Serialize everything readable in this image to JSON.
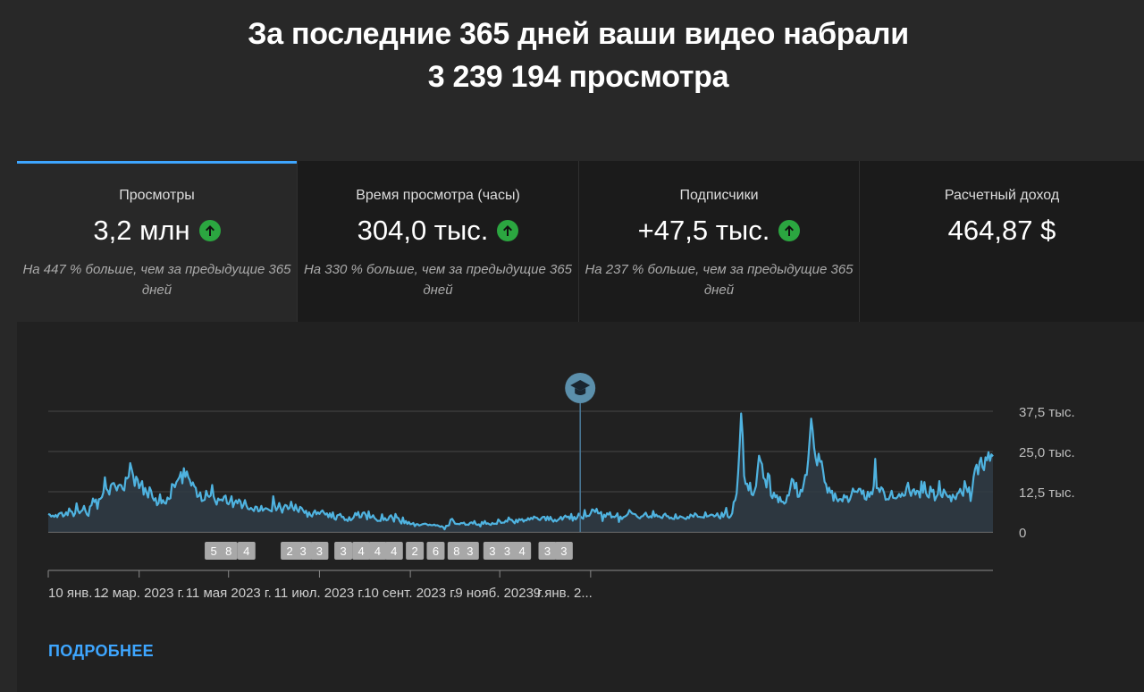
{
  "headline": {
    "line1": "За последние 365 дней ваши видео набрали",
    "line2": "3 239 194 просмотра"
  },
  "tabs": [
    {
      "label": "Просмотры",
      "value": "3,2 млн",
      "trend": "up",
      "desc": "На 447 % больше, чем за предыдущие 365 дней",
      "active": true
    },
    {
      "label": "Время просмотра (часы)",
      "value": "304,0 тыс.",
      "trend": "up",
      "desc": "На 330 % больше, чем за предыдущие 365 дней",
      "active": false
    },
    {
      "label": "Подписчики",
      "value": "+47,5 тыс.",
      "trend": "up",
      "desc": "На 237 % больше, чем за предыдущие 365 дней",
      "active": false
    },
    {
      "label": "Расчетный доход",
      "value": "464,87 $",
      "trend": null,
      "desc": "",
      "active": false
    }
  ],
  "colors": {
    "accent": "#3ea6ff",
    "line": "#4fb3e0",
    "up_arrow": "#2ba640",
    "badge": "#a8a8a8"
  },
  "chart_data": {
    "type": "area",
    "yticks": [
      "37,5 тыс.",
      "25,0 тыс.",
      "12,5 тыс.",
      "0"
    ],
    "ytick_values": [
      37500,
      25000,
      12500,
      0
    ],
    "ylim": [
      0,
      37500
    ],
    "xticks": [
      "10 янв. ...",
      "12 мар. 2023 г.",
      "11 мая 2023 г.",
      "11 июл. 2023 г.",
      "10 сент. 2023 г.",
      "9 нояб. 2023 г.",
      "9 янв. 2..."
    ],
    "marker_icon": "graduation-cap-icon",
    "marker_day": 357,
    "series": [
      {
        "values": [
          5600,
          5400,
          4800,
          5100,
          4700,
          5300,
          4600,
          5600,
          5900,
          6000,
          4800,
          5200,
          6100,
          5200,
          7300,
          6500,
          6200,
          4900,
          5800,
          8900,
          6600,
          5800,
          6400,
          6800,
          8100,
          6500,
          5400,
          5000,
          7900,
          8300,
          10400,
          9300,
          10100,
          7200,
          10200,
          10300,
          10800,
          12300,
          17000,
          13400,
          12800,
          11600,
          14500,
          15100,
          15200,
          14100,
          12900,
          14400,
          14700,
          14500,
          13300,
          12900,
          16900,
          16600,
          17200,
          21400,
          19500,
          17500,
          14300,
          17200,
          16300,
          13600,
          14800,
          15800,
          11600,
          13700,
          12200,
          10700,
          13900,
          12800,
          10700,
          9800,
          10500,
          8300,
          8900,
          11700,
          8900,
          9900,
          9000,
          8800,
          10700,
          10200,
          10500,
          14900,
          14700,
          13900,
          15500,
          16200,
          17000,
          18600,
          15100,
          19800,
          17100,
          18800,
          17000,
          16100,
          14400,
          15400,
          14200,
          13700,
          10900,
          11100,
          12300,
          9600,
          9800,
          10000,
          12800,
          11300,
          10900,
          11300,
          14600,
          11000,
          9600,
          8500,
          10400,
          9900,
          10100,
          9700,
          11000,
          11300,
          8900,
          8600,
          9600,
          11100,
          7700,
          9100,
          9800,
          8900,
          10100,
          9500,
          7400,
          8400,
          9900,
          8200,
          7200,
          7000,
          7500,
          7000,
          6500,
          7900,
          7800,
          6400,
          6600,
          8100,
          6600,
          7100,
          7400,
          7200,
          6900,
          6600,
          6400,
          11100,
          8300,
          6700,
          7500,
          9000,
          7400,
          6000,
          7600,
          8400,
          8200,
          7100,
          7500,
          9400,
          7600,
          6700,
          8500,
          6900,
          6200,
          7800,
          7500,
          6700,
          5900,
          6600,
          4700,
          6100,
          5200,
          4800,
          6000,
          6700,
          5500,
          6100,
          5600,
          6300,
          6700,
          6000,
          5400,
          5800,
          4600,
          5800,
          4500,
          6100,
          4100,
          3800,
          5200,
          5300,
          5600,
          4600,
          4700,
          3700,
          3900,
          3400,
          4600,
          3600,
          4000,
          4600,
          5900,
          5200,
          6200,
          4500,
          4600,
          5900,
          6100,
          5400,
          3900,
          6400,
          4400,
          4600,
          5200,
          4300,
          3900,
          3400,
          3500,
          3400,
          5500,
          3700,
          4300,
          3600,
          3800,
          4800,
          5200,
          4400,
          3200,
          5600,
          4500,
          4300,
          3300,
          2600,
          4500,
          2700,
          3400,
          2500,
          3100,
          2400,
          2500,
          2800,
          1800,
          2400,
          2400,
          2000,
          2200,
          2400,
          2500,
          2600,
          2400,
          2100,
          2300,
          2100,
          2100,
          2300,
          2000,
          2100,
          1900,
          1600,
          1800,
          1500,
          800,
          1900,
          1900,
          2100,
          3800,
          4100,
          3400,
          2600,
          2500,
          2500,
          2400,
          2800,
          2700,
          2900,
          2200,
          2300,
          2200,
          2800,
          3000,
          2600,
          3400,
          2400,
          2200,
          2400,
          1700,
          3100,
          2500,
          3400,
          2500,
          2700,
          2400,
          2200,
          2800,
          2500,
          2600,
          2500,
          3900,
          3400,
          2800,
          2900,
          2900,
          3500,
          3200,
          4500,
          3800,
          3800,
          3200,
          2700,
          3800,
          3000,
          4000,
          3700,
          4000,
          3200,
          3700,
          3600,
          4300,
          3800,
          4400,
          4000,
          4800,
          4500,
          4400,
          3900,
          3700,
          4300,
          4700,
          4700,
          3600,
          4800,
          3700,
          4700,
          3800,
          3200,
          3800,
          3300,
          3700,
          4100,
          4700,
          3800,
          4600,
          5100,
          4600,
          4800,
          4000,
          5600,
          3500,
          4700,
          3900,
          4500,
          5700,
          5000,
          4400,
          4100,
          6800,
          4800,
          5000,
          5000,
          5800,
          7000,
          6800,
          6200,
          7200,
          5800,
          5800,
          6200,
          3400,
          5400,
          4700,
          5800,
          5400,
          6100,
          4500,
          4800,
          4600,
          5000,
          5800,
          3100,
          4800,
          4000,
          4600,
          4800,
          5100,
          5600,
          6800,
          6200,
          5700,
          5600,
          5500,
          4900,
          4500,
          4200,
          4800,
          4900,
          5500,
          6000,
          4900,
          4500,
          4900,
          4500,
          6500,
          4800,
          5400,
          4800,
          4900,
          4500,
          4300,
          5300,
          5700,
          4900,
          4900,
          4200,
          4500,
          4100,
          4000,
          5500,
          4200,
          4300,
          4900,
          4700,
          4500,
          4200,
          4000,
          4700,
          4300,
          5400,
          5100,
          4700,
          5800,
          5400,
          4700,
          4700,
          4600,
          4600,
          4400,
          6100,
          4800,
          4900,
          5200,
          5400,
          5300,
          4800,
          5100,
          5800,
          4700,
          4200,
          6000,
          4700,
          5800,
          7500,
          4800,
          4400,
          4900,
          5800,
          9300,
          9900,
          12000,
          18400,
          26900,
          36800,
          30100,
          17400,
          14900,
          15000,
          12900,
          15300,
          11700,
          11400,
          12800,
          14300,
          19200,
          23700,
          22100,
          21100,
          16800,
          16300,
          13800,
          18200,
          17500,
          11300,
          10500,
          12200,
          10800,
          11400,
          9200,
          10900,
          9400,
          9400,
          8800,
          9200,
          11400,
          11300,
          13800,
          16500,
          16100,
          13500,
          15300,
          10900,
          11000,
          13100,
          12600,
          15000,
          17700,
          17700,
          22400,
          28700,
          35200,
          31500,
          26100,
          23000,
          20700,
          24300,
          21800,
          22000,
          19000,
          15600,
          14800,
          12200,
          13800,
          12200,
          12800,
          9700,
          12000,
          10400,
          9500,
          10200,
          10200,
          9500,
          11500,
          10700,
          11100,
          9300,
          10100,
          11600,
          13500,
          12500,
          12600,
          12400,
          13400,
          13400,
          11800,
          12900,
          10300,
          10000,
          12500,
          10900,
          12400,
          11700,
          14300,
          22700,
          13600,
          13600,
          12400,
          13900,
          13400,
          12100,
          10000,
          10200,
          10100,
          11300,
          12800,
          10600,
          10500,
          10400,
          10900,
          11800,
          10900,
          12000,
          11200,
          11400,
          13800,
          15300,
          12600,
          11200,
          12900,
          13300,
          11600,
          12800,
          12600,
          10700,
          15700,
          12200,
          15500,
          12200,
          11100,
          10700,
          14100,
          12500,
          13100,
          9800,
          10900,
          11700,
          15800,
          11500,
          10800,
          13200,
          12300,
          11400,
          10800,
          11300,
          9500,
          11600,
          10800,
          10200,
          11900,
          12200,
          13400,
          12100,
          11200,
          15800,
          13900,
          12400,
          13900,
          9600,
          12800,
          17100,
          19600,
          20900,
          17900,
          21700,
          23100,
          20100,
          19200,
          23200,
          22300,
          24800,
          22100,
          24100,
          23500
        ]
      }
    ],
    "annotation_badges": [
      {
        "day": 111,
        "value": "5"
      },
      {
        "day": 121,
        "value": "8"
      },
      {
        "day": 133,
        "value": "4"
      },
      {
        "day": 162,
        "value": "2"
      },
      {
        "day": 171,
        "value": "3"
      },
      {
        "day": 182,
        "value": "3"
      },
      {
        "day": 198,
        "value": "3"
      },
      {
        "day": 210,
        "value": "4"
      },
      {
        "day": 221,
        "value": "4"
      },
      {
        "day": 232,
        "value": "4"
      },
      {
        "day": 246,
        "value": "2"
      },
      {
        "day": 260,
        "value": "6"
      },
      {
        "day": 274,
        "value": "8"
      },
      {
        "day": 283,
        "value": "3"
      },
      {
        "day": 298,
        "value": "3"
      },
      {
        "day": 308,
        "value": "3"
      },
      {
        "day": 318,
        "value": "4"
      },
      {
        "day": 335,
        "value": "3"
      },
      {
        "day": 346,
        "value": "3"
      }
    ]
  },
  "more_link": "ПОДРОБНЕЕ"
}
